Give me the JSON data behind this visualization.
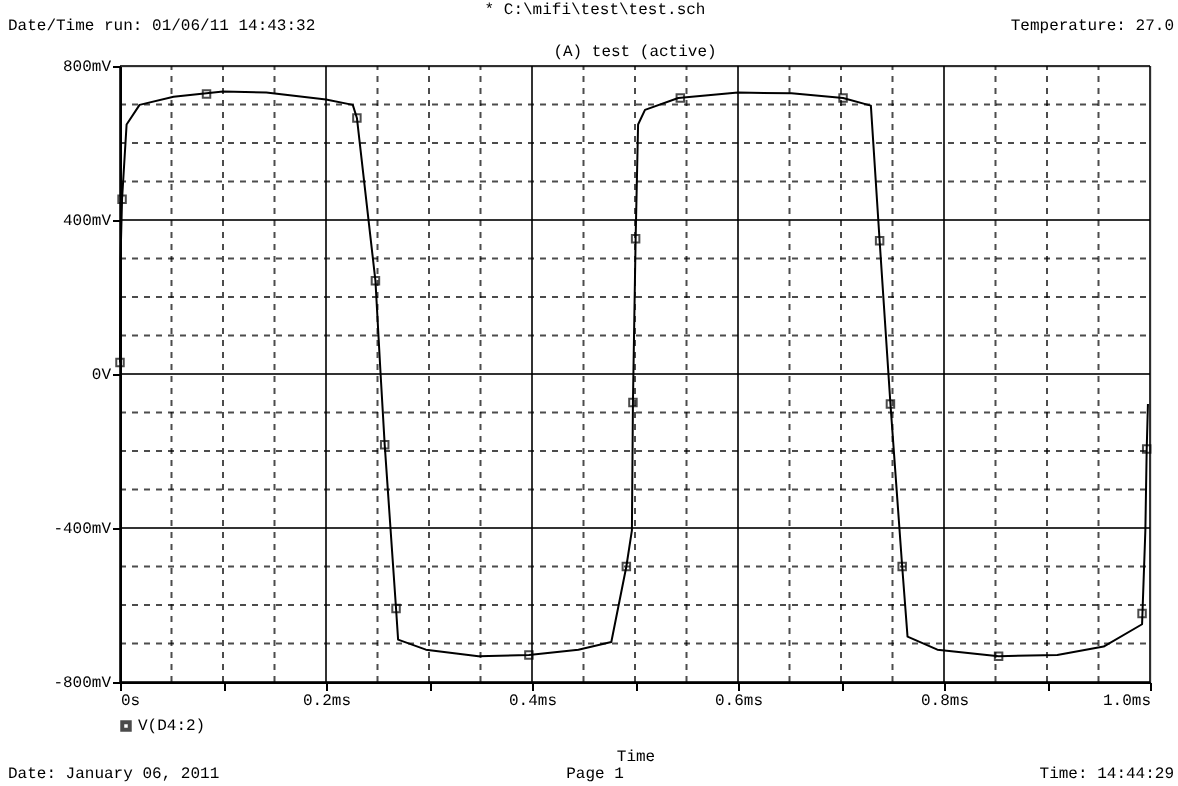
{
  "chart_data": {
    "type": "line",
    "title": "(A) test (active)",
    "xlabel": "Time",
    "annotations": [
      "* C:\\mifi\\test\\test.sch",
      "Date/Time run: 01/06/11 14:43:32",
      "Temperature: 27.0",
      "Date: January 06, 2011",
      "Page 1",
      "Time: 14:44:29"
    ],
    "series": [
      {
        "name": "V(D4:2)",
        "color": "#000000",
        "x": [
          0,
          0.0005,
          0.002,
          0.0064,
          0.019,
          0.052,
          0.1,
          0.142,
          0.2,
          0.226,
          0.23,
          0.248,
          0.253,
          0.257,
          0.268,
          0.27,
          0.297,
          0.348,
          0.397,
          0.445,
          0.477,
          0.4916,
          0.497,
          0.498,
          0.5006,
          0.503,
          0.5097,
          0.542,
          0.6,
          0.652,
          0.702,
          0.729,
          0.7375,
          0.748,
          0.7594,
          0.7646,
          0.7936,
          0.853,
          0.91,
          0.955,
          0.9923,
          0.9955,
          0.9968,
          0.998
        ],
        "values": [
          30,
          300,
          454,
          648,
          699,
          720,
          734,
          731,
          713,
          699,
          665,
          242,
          0,
          -184,
          -609,
          -690,
          -716,
          -733,
          -730,
          -716,
          -696,
          -500,
          -406,
          -74,
          351,
          648,
          686,
          717,
          731,
          729,
          717,
          697,
          346,
          -78,
          -500,
          -682,
          -716,
          -733,
          -730,
          -708,
          -650,
          -406,
          -195,
          -78
        ]
      },
      {
        "type": "scatter",
        "marker": "square",
        "color": "#000000",
        "x": [
          0,
          0.002,
          0.084,
          0.23,
          0.248,
          0.257,
          0.268,
          0.397,
          0.4916,
          0.498,
          0.5006,
          0.544,
          0.702,
          0.7375,
          0.748,
          0.7594,
          0.853,
          0.9923,
          0.9968
        ],
        "values": [
          30,
          454,
          727,
          665,
          242,
          -184,
          -609,
          -730,
          -500,
          -74,
          351,
          717,
          717,
          346,
          -78,
          -500,
          -733,
          -622,
          -195
        ]
      }
    ],
    "legend": "bottom left",
    "grid": true,
    "xlim": [
      0,
      1.0
    ],
    "ylim": [
      -800,
      800
    ],
    "xticks": [
      {
        "value": 0,
        "label": "0s"
      },
      {
        "value": 0.05,
        "label": null
      },
      {
        "value": 0.1,
        "label": null
      },
      {
        "value": 0.15,
        "label": null
      },
      {
        "value": 0.2,
        "label": "0.2ms"
      },
      {
        "value": 0.25,
        "label": null
      },
      {
        "value": 0.3,
        "label": null
      },
      {
        "value": 0.35,
        "label": null
      },
      {
        "value": 0.4,
        "label": "0.4ms"
      },
      {
        "value": 0.45,
        "label": null
      },
      {
        "value": 0.5,
        "label": null
      },
      {
        "value": 0.55,
        "label": null
      },
      {
        "value": 0.6,
        "label": "0.6ms"
      },
      {
        "value": 0.65,
        "label": null
      },
      {
        "value": 0.7,
        "label": null
      },
      {
        "value": 0.75,
        "label": null
      },
      {
        "value": 0.8,
        "label": "0.8ms"
      },
      {
        "value": 0.85,
        "label": null
      },
      {
        "value": 0.9,
        "label": null
      },
      {
        "value": 0.95,
        "label": null
      },
      {
        "value": 1.0,
        "label": "1.0ms"
      }
    ],
    "yticks": [
      {
        "value": -800,
        "label": "-800mV"
      },
      {
        "value": -700,
        "label": null
      },
      {
        "value": -600,
        "label": null
      },
      {
        "value": -500,
        "label": null
      },
      {
        "value": -400,
        "label": "-400mV"
      },
      {
        "value": -300,
        "label": null
      },
      {
        "value": -200,
        "label": null
      },
      {
        "value": -100,
        "label": null
      },
      {
        "value": 0,
        "label": "0V"
      },
      {
        "value": 100,
        "label": null
      },
      {
        "value": 200,
        "label": null
      },
      {
        "value": 300,
        "label": null
      },
      {
        "value": 400,
        "label": "400mV"
      },
      {
        "value": 500,
        "label": null
      },
      {
        "value": 600,
        "label": null
      },
      {
        "value": 700,
        "label": null
      },
      {
        "value": 800,
        "label": "800mV"
      }
    ]
  }
}
